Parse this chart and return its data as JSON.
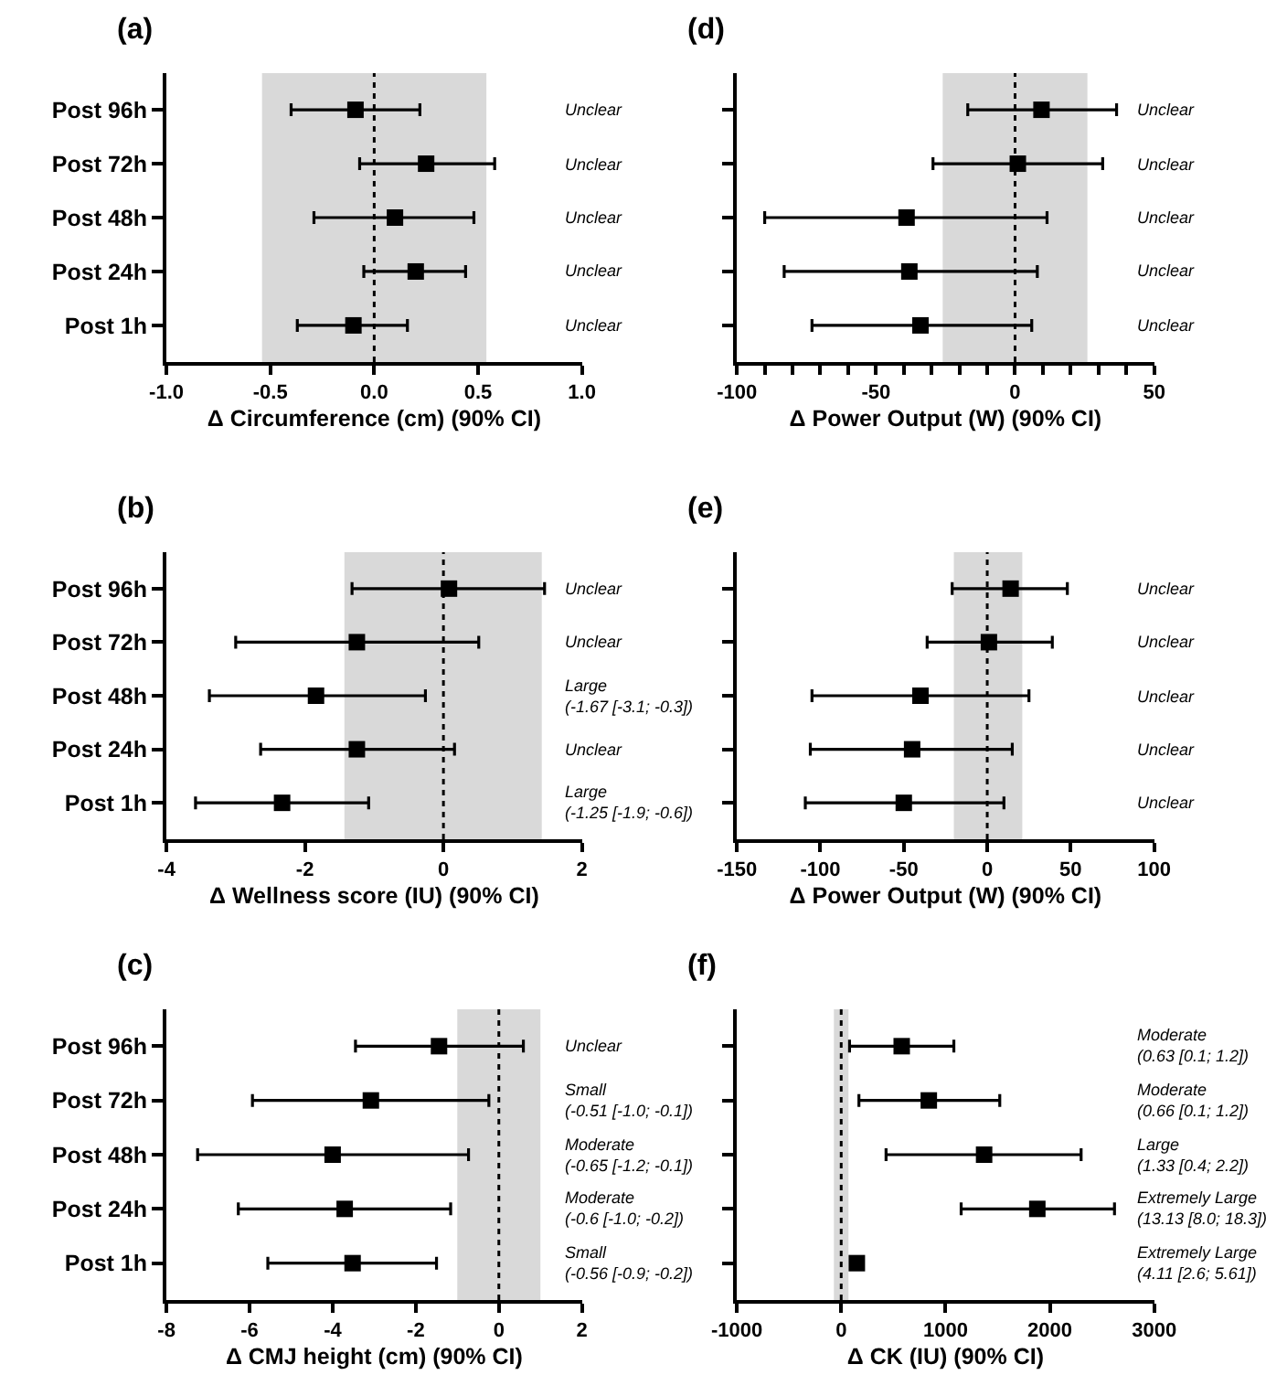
{
  "chart_data": [
    {
      "type": "scatter",
      "orientation": "horizontal",
      "title": "(a)",
      "xlabel": "Δ Circumference (cm) (90% CI)",
      "categories": [
        "Post 96h",
        "Post 72h",
        "Post 48h",
        "Post 24h",
        "Post 1h"
      ],
      "marker": "square",
      "series": [
        {
          "color": "#000000",
          "values": [
            -0.09,
            0.25,
            0.1,
            0.2,
            -0.1
          ],
          "errors": [
            [
              -0.4,
              0.22
            ],
            [
              -0.07,
              0.58
            ],
            [
              -0.29,
              0.48
            ],
            [
              -0.05,
              0.44
            ],
            [
              -0.37,
              0.16
            ]
          ]
        }
      ],
      "xlim": [
        -1.0,
        1.0
      ],
      "xticks": [
        {
          "value": -1,
          "label": "-1.0"
        },
        {
          "value": -0.5,
          "label": "-0.5"
        },
        {
          "value": 0,
          "label": "0.0"
        },
        {
          "value": 0.5,
          "label": "0.5"
        },
        {
          "value": 1,
          "label": "1.0"
        }
      ],
      "bands": [
        {
          "axis": "x",
          "from": -0.54,
          "to": 0.54,
          "color": "#d9d9d9"
        }
      ],
      "ref_lines": [
        {
          "axis": "x",
          "value": 0,
          "line_style": "dotted",
          "color": "#000000"
        }
      ],
      "annotations": [
        "Unclear",
        "Unclear",
        "Unclear",
        "Unclear",
        "Unclear"
      ]
    },
    {
      "type": "scatter",
      "orientation": "horizontal",
      "title": "(d)",
      "xlabel": "Δ Power Output (W) (90% CI)",
      "categories": [
        null,
        null,
        null,
        null,
        null
      ],
      "marker": "square",
      "tick_labels": "x",
      "series": [
        {
          "color": "#000000",
          "values": [
            9.5,
            1,
            -39,
            -38,
            -34
          ],
          "errors": [
            [
              -17,
              36.5
            ],
            [
              -29.5,
              31.5
            ],
            [
              -90,
              11.5
            ],
            [
              -83,
              8
            ],
            [
              -73,
              6
            ]
          ]
        }
      ],
      "xlim": [
        -100,
        50
      ],
      "xticks": [
        -100,
        {
          "value": -90,
          "label": null
        },
        {
          "value": -80,
          "label": null
        },
        {
          "value": -70,
          "label": null
        },
        {
          "value": -60,
          "label": null
        },
        -50,
        {
          "value": -40,
          "label": null
        },
        {
          "value": -30,
          "label": null
        },
        {
          "value": -20,
          "label": null
        },
        {
          "value": -10,
          "label": null
        },
        0,
        {
          "value": 10,
          "label": null
        },
        {
          "value": 20,
          "label": null
        },
        {
          "value": 30,
          "label": null
        },
        {
          "value": 40,
          "label": null
        },
        50
      ],
      "bands": [
        {
          "axis": "x",
          "from": -26,
          "to": 26,
          "color": "#d9d9d9"
        }
      ],
      "ref_lines": [
        {
          "axis": "x",
          "value": 0,
          "line_style": "dotted",
          "color": "#000000"
        }
      ],
      "annotations": [
        "Unclear",
        "Unclear",
        "Unclear",
        "Unclear",
        "Unclear"
      ]
    },
    {
      "type": "scatter",
      "orientation": "horizontal",
      "title": "(b)",
      "xlabel": "Δ Wellness score (IU) (90% CI)",
      "categories": [
        "Post 96h",
        "Post 72h",
        "Post 48h",
        "Post 24h",
        "Post 1h"
      ],
      "marker": "square",
      "series": [
        {
          "color": "#000000",
          "values": [
            0.08,
            -1.25,
            -1.84,
            -1.25,
            -2.33
          ],
          "errors": [
            [
              -1.32,
              1.46
            ],
            [
              -3.0,
              0.51
            ],
            [
              -3.38,
              -0.26
            ],
            [
              -2.64,
              0.16
            ],
            [
              -3.58,
              -1.08
            ]
          ]
        }
      ],
      "xlim": [
        -4,
        2
      ],
      "xticks": [
        -4,
        -2,
        0,
        2
      ],
      "bands": [
        {
          "axis": "x",
          "from": -1.43,
          "to": 1.42,
          "color": "#d9d9d9"
        }
      ],
      "ref_lines": [
        {
          "axis": "x",
          "value": 0,
          "line_style": "dotted",
          "color": "#000000"
        }
      ],
      "annotations": [
        "Unclear",
        "Unclear",
        "Large\n(-1.67 [-3.1; -0.3])",
        "Unclear",
        "Large\n(-1.25 [-1.9; -0.6])"
      ]
    },
    {
      "type": "scatter",
      "orientation": "horizontal",
      "title": "(e)",
      "xlabel": "Δ Power Output (W) (90% CI)",
      "categories": [
        null,
        null,
        null,
        null,
        null
      ],
      "marker": "square",
      "tick_labels": "x",
      "series": [
        {
          "color": "#000000",
          "values": [
            14,
            1,
            -40,
            -45,
            -50
          ],
          "errors": [
            [
              -21,
              48
            ],
            [
              -36,
              39
            ],
            [
              -105,
              25
            ],
            [
              -106,
              15
            ],
            [
              -109,
              10
            ]
          ]
        }
      ],
      "xlim": [
        -150,
        100
      ],
      "xticks": [
        -150,
        -100,
        -50,
        0,
        50,
        100
      ],
      "bands": [
        {
          "axis": "x",
          "from": -20,
          "to": 21,
          "color": "#d9d9d9"
        }
      ],
      "ref_lines": [
        {
          "axis": "x",
          "value": 0,
          "line_style": "dotted",
          "color": "#000000"
        }
      ],
      "annotations": [
        "Unclear",
        "Unclear",
        "Unclear",
        "Unclear",
        "Unclear"
      ]
    },
    {
      "type": "scatter",
      "orientation": "horizontal",
      "title": "(c)",
      "xlabel": "Δ CMJ height (cm) (90% CI)",
      "categories": [
        "Post 96h",
        "Post 72h",
        "Post 48h",
        "Post 24h",
        "Post 1h"
      ],
      "marker": "square",
      "series": [
        {
          "color": "#000000",
          "values": [
            -1.44,
            -3.08,
            -4.0,
            -3.71,
            -3.52
          ],
          "errors": [
            [
              -3.45,
              0.59
            ],
            [
              -5.93,
              -0.24
            ],
            [
              -7.25,
              -0.73
            ],
            [
              -6.27,
              -1.16
            ],
            [
              -5.56,
              -1.5
            ]
          ]
        }
      ],
      "xlim": [
        -8,
        2
      ],
      "xticks": [
        -8,
        -6,
        -4,
        -2,
        0,
        2
      ],
      "bands": [
        {
          "axis": "x",
          "from": -1,
          "to": 1,
          "color": "#d9d9d9"
        }
      ],
      "ref_lines": [
        {
          "axis": "x",
          "value": 0,
          "line_style": "dotted",
          "color": "#000000"
        }
      ],
      "annotations": [
        "Unclear",
        "Small\n(-0.51 [-1.0; -0.1])",
        "Moderate\n(-0.65 [-1.2; -0.1])",
        "Moderate\n(-0.6 [-1.0; -0.2])",
        "Small\n(-0.56 [-0.9; -0.2])"
      ]
    },
    {
      "type": "scatter",
      "orientation": "horizontal",
      "title": "(f)",
      "xlabel": "Δ CK (IU) (90% CI)",
      "categories": [
        null,
        null,
        null,
        null,
        null
      ],
      "marker": "square",
      "tick_labels": "x",
      "series": [
        {
          "color": "#000000",
          "values": [
            580,
            840,
            1370,
            1880,
            150
          ],
          "errors": [
            [
              80,
              1080
            ],
            [
              170,
              1520
            ],
            [
              430,
              2300
            ],
            [
              1150,
              2620
            ],
            null
          ]
        }
      ],
      "xlim": [
        -1000,
        3000
      ],
      "xticks": [
        -1000,
        0,
        1000,
        2000,
        3000
      ],
      "bands": [
        {
          "axis": "x",
          "from": -70,
          "to": 70,
          "color": "#d9d9d9"
        }
      ],
      "ref_lines": [
        {
          "axis": "x",
          "value": 0,
          "line_style": "dotted",
          "color": "#000000"
        }
      ],
      "annotations": [
        "Moderate\n(0.63 [0.1; 1.2])",
        "Moderate\n(0.66 [0.1; 1.2])",
        "Large\n(1.33 [0.4; 2.2])",
        "Extremely Large\n(13.13 [8.0; 18.3])",
        "Extremely Large\n(4.11 [2.6; 5.61])"
      ]
    }
  ]
}
